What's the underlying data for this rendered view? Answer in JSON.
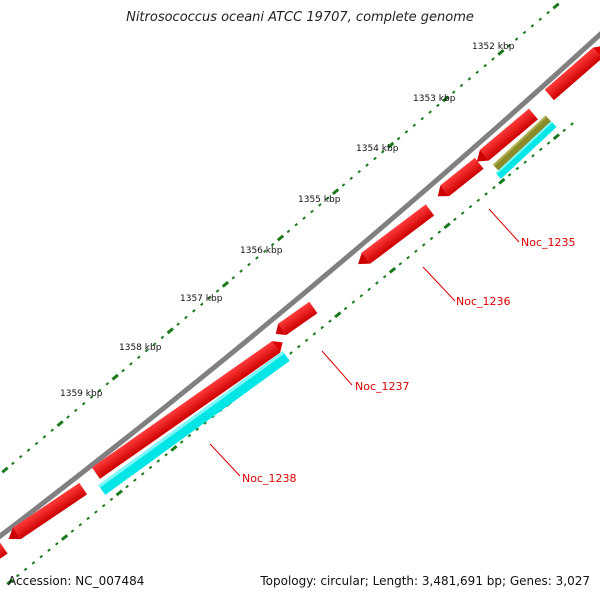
{
  "title": "Nitrosococcus oceani ATCC 19707, complete genome",
  "footer": {
    "accession": "Accession: NC_007484",
    "summary": "Topology: circular; Length: 3,481,691 bp; Genes: 3,027"
  },
  "colors": {
    "backbone": "#808080",
    "cds": "#ff0000",
    "rna": "#00ffff",
    "olive": "#8b8b2a",
    "tick": "#1a7a1a",
    "label_red": "#dd0000"
  },
  "kbp_labels": [
    "1352 kbp",
    "1353 kbp",
    "1354 kbp",
    "1355 kbp",
    "1356 kbp",
    "1357 kbp",
    "1358 kbp",
    "1359 kbp"
  ],
  "gene_labels": [
    "Noc_1235",
    "Noc_1236",
    "Noc_1237",
    "Noc_1238"
  ]
}
